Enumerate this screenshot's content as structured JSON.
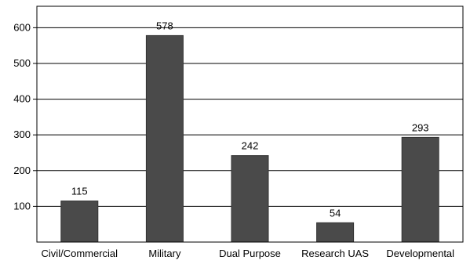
{
  "chart_data": {
    "type": "bar",
    "categories": [
      "Civil/Commercial",
      "Military",
      "Dual Purpose",
      "Research  UAS",
      "Developmental"
    ],
    "values": [
      115,
      578,
      242,
      54,
      293
    ],
    "data_labels": [
      "115",
      "578",
      "242",
      "54",
      "293"
    ],
    "yticks": [
      100,
      200,
      300,
      400,
      500,
      600
    ],
    "ytick_labels": [
      "100",
      "200",
      "300",
      "400",
      "500",
      "600"
    ],
    "ylim": [
      0,
      660
    ],
    "grid": true,
    "bar_color": "#4a4a4a"
  }
}
